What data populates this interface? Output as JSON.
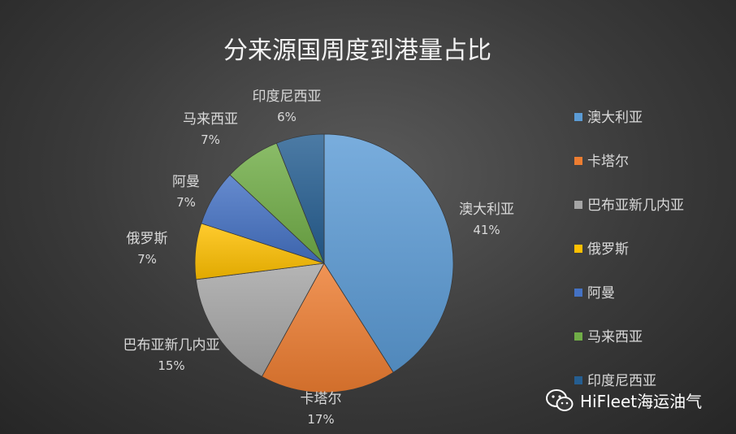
{
  "chart_data": {
    "type": "pie",
    "title": "分来源国周度到港量占比",
    "slices": [
      {
        "label": "澳大利亚",
        "value": 41,
        "display": "41%",
        "color": "#5b9bd5"
      },
      {
        "label": "卡塔尔",
        "value": 17,
        "display": "17%",
        "color": "#ed7d31"
      },
      {
        "label": "巴布亚新几内亚",
        "value": 15,
        "display": "15%",
        "color": "#a5a5a5"
      },
      {
        "label": "俄罗斯",
        "value": 7,
        "display": "7%",
        "color": "#ffc000"
      },
      {
        "label": "阿曼",
        "value": 7,
        "display": "7%",
        "color": "#4472c4"
      },
      {
        "label": "马来西亚",
        "value": 7,
        "display": "7%",
        "color": "#70ad47"
      },
      {
        "label": "印度尼西亚",
        "value": 6,
        "display": "6%",
        "color": "#255e91"
      }
    ],
    "legend_position": "right"
  },
  "watermark": {
    "text": "HiFleet海运油气",
    "icon": "wechat-icon"
  }
}
